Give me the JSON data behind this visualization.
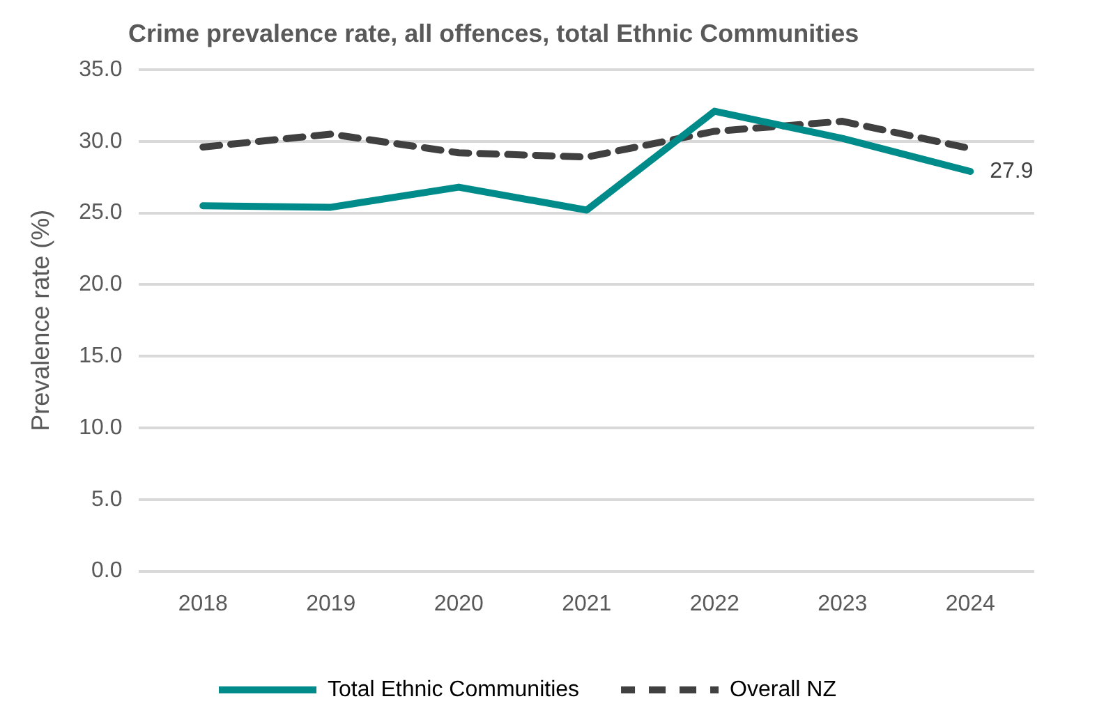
{
  "chart_data": {
    "type": "line",
    "title": "Crime prevalence rate, all offences, total Ethnic Communities",
    "ylabel": "Prevalence rate (%)",
    "categories": [
      "2018",
      "2019",
      "2020",
      "2021",
      "2022",
      "2023",
      "2024"
    ],
    "series": [
      {
        "name": "Total Ethnic Communities",
        "color": "#008b8b",
        "line_style": "solid",
        "values": [
          25.5,
          25.4,
          26.8,
          25.2,
          32.1,
          30.2,
          27.9
        ],
        "value_labels": [
          null,
          null,
          null,
          null,
          null,
          null,
          "27.9"
        ]
      },
      {
        "name": "Overall NZ",
        "color": "#404040",
        "line_style": "dashed",
        "values": [
          29.6,
          30.5,
          29.2,
          28.9,
          30.7,
          31.4,
          29.5
        ]
      }
    ],
    "ylim": [
      0,
      35
    ],
    "yticks": [
      {
        "value": 0,
        "label": "0.0"
      },
      {
        "value": 5,
        "label": "5.0"
      },
      {
        "value": 10,
        "label": "10.0"
      },
      {
        "value": 15,
        "label": "15.0"
      },
      {
        "value": 20,
        "label": "20.0"
      },
      {
        "value": 25,
        "label": "25.0"
      },
      {
        "value": 30,
        "label": "30.0"
      },
      {
        "value": 35,
        "label": "35.0"
      }
    ],
    "grid": "y",
    "legend": "bottom",
    "marker": "none"
  }
}
